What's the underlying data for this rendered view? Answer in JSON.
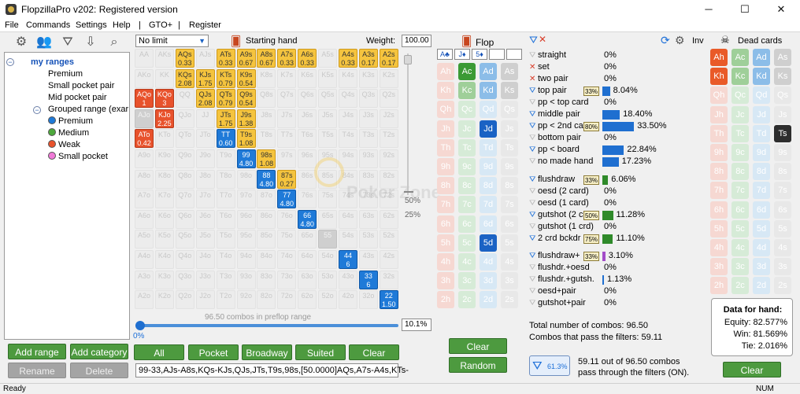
{
  "app": {
    "title": "FlopzillaPro v202: Registered version",
    "minimize": "─",
    "maximize": "☐",
    "close": "✕"
  },
  "menu": [
    "File",
    "Commands",
    "Settings",
    "Help",
    "|",
    "GTO+",
    "|",
    "Register"
  ],
  "toolbar_icons": [
    "gear-icon",
    "users-icon",
    "filter-icon",
    "import-icon",
    "search-icon"
  ],
  "tree": {
    "root": "my ranges",
    "items": [
      "Premium",
      "Small pocket pair",
      "Mid pocket pair"
    ],
    "group": "Grouped range (exar",
    "sub": [
      {
        "label": "Premium",
        "color": "#1f7ad8"
      },
      {
        "label": "Medium",
        "color": "#4da83c"
      },
      {
        "label": "Weak",
        "color": "#e8522c"
      },
      {
        "label": "Small pocket",
        "color": "#f07ad8"
      }
    ]
  },
  "left_buttons": {
    "add_range": "Add range",
    "add_category": "Add category",
    "rename": "Rename",
    "delete": "Delete"
  },
  "range_header": {
    "limit": "No limit",
    "starting_hand": "Starting hand",
    "weight_label": "Weight:",
    "weight_value": "100.00"
  },
  "range_grid": {
    "rows": [
      [
        [
          "AA",
          "",
          0
        ],
        [
          "AKs",
          "",
          0
        ],
        [
          "AQs",
          "0.33",
          1
        ],
        [
          "AJs",
          "",
          0
        ],
        [
          "ATs",
          "0.33",
          1
        ],
        [
          "A9s",
          "0.67",
          1
        ],
        [
          "A8s",
          "0.67",
          1
        ],
        [
          "A7s",
          "0.33",
          1
        ],
        [
          "A6s",
          "0.33",
          1
        ],
        [
          "A5s",
          "",
          0
        ],
        [
          "A4s",
          "0.33",
          1
        ],
        [
          "A3s",
          "0.17",
          1
        ],
        [
          "A2s",
          "0.17",
          1
        ]
      ],
      [
        [
          "AKo",
          "",
          0
        ],
        [
          "KK",
          "",
          0
        ],
        [
          "KQs",
          "2.08",
          1
        ],
        [
          "KJs",
          "1.75",
          1
        ],
        [
          "KTs",
          "0.79",
          1
        ],
        [
          "K9s",
          "0.54",
          1
        ],
        [
          "K8s",
          "",
          0
        ],
        [
          "K7s",
          "",
          0
        ],
        [
          "K6s",
          "",
          0
        ],
        [
          "K5s",
          "",
          0
        ],
        [
          "K4s",
          "",
          0
        ],
        [
          "K3s",
          "",
          0
        ],
        [
          "K2s",
          "",
          0
        ]
      ],
      [
        [
          "AQo",
          "1",
          2
        ],
        [
          "KQo",
          "3",
          2
        ],
        [
          "QQ",
          "",
          0
        ],
        [
          "QJs",
          "2.08",
          1
        ],
        [
          "QTs",
          "0.79",
          1
        ],
        [
          "Q9s",
          "0.54",
          1
        ],
        [
          "Q8s",
          "",
          0
        ],
        [
          "Q7s",
          "",
          0
        ],
        [
          "Q6s",
          "",
          0
        ],
        [
          "Q5s",
          "",
          0
        ],
        [
          "Q4s",
          "",
          0
        ],
        [
          "Q3s",
          "",
          0
        ],
        [
          "Q2s",
          "",
          0
        ]
      ],
      [
        [
          "AJo",
          "",
          4
        ],
        [
          "KJo",
          "2.25",
          2
        ],
        [
          "QJo",
          "",
          0
        ],
        [
          "JJ",
          "",
          0
        ],
        [
          "JTs",
          "1.75",
          1
        ],
        [
          "J9s",
          "1.38",
          1
        ],
        [
          "J8s",
          "",
          0
        ],
        [
          "J7s",
          "",
          0
        ],
        [
          "J6s",
          "",
          0
        ],
        [
          "J5s",
          "",
          0
        ],
        [
          "J4s",
          "",
          0
        ],
        [
          "J3s",
          "",
          0
        ],
        [
          "J2s",
          "",
          0
        ]
      ],
      [
        [
          "ATo",
          "0.42",
          2
        ],
        [
          "KTo",
          "",
          0
        ],
        [
          "QTo",
          "",
          0
        ],
        [
          "JTo",
          "",
          0
        ],
        [
          "TT",
          "0.60",
          3
        ],
        [
          "T9s",
          "1.08",
          1
        ],
        [
          "T8s",
          "",
          0
        ],
        [
          "T7s",
          "",
          0
        ],
        [
          "T6s",
          "",
          0
        ],
        [
          "T5s",
          "",
          0
        ],
        [
          "T4s",
          "",
          0
        ],
        [
          "T3s",
          "",
          0
        ],
        [
          "T2s",
          "",
          0
        ]
      ],
      [
        [
          "A9o",
          "",
          0
        ],
        [
          "K9o",
          "",
          0
        ],
        [
          "Q9o",
          "",
          0
        ],
        [
          "J9o",
          "",
          0
        ],
        [
          "T9o",
          "",
          0
        ],
        [
          "99",
          "4.80",
          3
        ],
        [
          "98s",
          "1.08",
          1
        ],
        [
          "97s",
          "",
          0
        ],
        [
          "96s",
          "",
          0
        ],
        [
          "95s",
          "",
          0
        ],
        [
          "94s",
          "",
          0
        ],
        [
          "93s",
          "",
          0
        ],
        [
          "92s",
          "",
          0
        ]
      ],
      [
        [
          "A8o",
          "",
          0
        ],
        [
          "K8o",
          "",
          0
        ],
        [
          "Q8o",
          "",
          0
        ],
        [
          "J8o",
          "",
          0
        ],
        [
          "T8o",
          "",
          0
        ],
        [
          "98o",
          "",
          0
        ],
        [
          "88",
          "4.80",
          3
        ],
        [
          "87s",
          "0.27",
          1
        ],
        [
          "86s",
          "",
          0
        ],
        [
          "85s",
          "",
          0
        ],
        [
          "84s",
          "",
          0
        ],
        [
          "83s",
          "",
          0
        ],
        [
          "82s",
          "",
          0
        ]
      ],
      [
        [
          "A7o",
          "",
          0
        ],
        [
          "K7o",
          "",
          0
        ],
        [
          "Q7o",
          "",
          0
        ],
        [
          "J7o",
          "",
          0
        ],
        [
          "T7o",
          "",
          0
        ],
        [
          "97o",
          "",
          0
        ],
        [
          "87o",
          "",
          0
        ],
        [
          "77",
          "4.80",
          3
        ],
        [
          "76s",
          "",
          0
        ],
        [
          "75s",
          "",
          0
        ],
        [
          "74s",
          "",
          0
        ],
        [
          "73s",
          "",
          0
        ],
        [
          "72s",
          "",
          0
        ]
      ],
      [
        [
          "A6o",
          "",
          0
        ],
        [
          "K6o",
          "",
          0
        ],
        [
          "Q6o",
          "",
          0
        ],
        [
          "J6o",
          "",
          0
        ],
        [
          "T6o",
          "",
          0
        ],
        [
          "96o",
          "",
          0
        ],
        [
          "86o",
          "",
          0
        ],
        [
          "76o",
          "",
          0
        ],
        [
          "66",
          "4.80",
          3
        ],
        [
          "65s",
          "",
          0
        ],
        [
          "64s",
          "",
          0
        ],
        [
          "63s",
          "",
          0
        ],
        [
          "62s",
          "",
          0
        ]
      ],
      [
        [
          "A5o",
          "",
          0
        ],
        [
          "K5o",
          "",
          0
        ],
        [
          "Q5o",
          "",
          0
        ],
        [
          "J5o",
          "",
          0
        ],
        [
          "T5o",
          "",
          0
        ],
        [
          "95o",
          "",
          0
        ],
        [
          "85o",
          "",
          0
        ],
        [
          "75o",
          "",
          0
        ],
        [
          "65o",
          "",
          0
        ],
        [
          "55",
          "",
          4
        ],
        [
          "54s",
          "",
          0
        ],
        [
          "53s",
          "",
          0
        ],
        [
          "52s",
          "",
          0
        ]
      ],
      [
        [
          "A4o",
          "",
          0
        ],
        [
          "K4o",
          "",
          0
        ],
        [
          "Q4o",
          "",
          0
        ],
        [
          "J4o",
          "",
          0
        ],
        [
          "T4o",
          "",
          0
        ],
        [
          "94o",
          "",
          0
        ],
        [
          "84o",
          "",
          0
        ],
        [
          "74o",
          "",
          0
        ],
        [
          "64o",
          "",
          0
        ],
        [
          "54o",
          "",
          0
        ],
        [
          "44",
          "6",
          3
        ],
        [
          "43s",
          "",
          0
        ],
        [
          "42s",
          "",
          0
        ]
      ],
      [
        [
          "A3o",
          "",
          0
        ],
        [
          "K3o",
          "",
          0
        ],
        [
          "Q3o",
          "",
          0
        ],
        [
          "J3o",
          "",
          0
        ],
        [
          "T3o",
          "",
          0
        ],
        [
          "93o",
          "",
          0
        ],
        [
          "83o",
          "",
          0
        ],
        [
          "73o",
          "",
          0
        ],
        [
          "63o",
          "",
          0
        ],
        [
          "53o",
          "",
          0
        ],
        [
          "43o",
          "",
          0
        ],
        [
          "33",
          "6",
          3
        ],
        [
          "32s",
          "",
          0
        ]
      ],
      [
        [
          "A2o",
          "",
          0
        ],
        [
          "K2o",
          "",
          0
        ],
        [
          "Q2o",
          "",
          0
        ],
        [
          "J2o",
          "",
          0
        ],
        [
          "T2o",
          "",
          0
        ],
        [
          "92o",
          "",
          0
        ],
        [
          "82o",
          "",
          0
        ],
        [
          "72o",
          "",
          0
        ],
        [
          "62o",
          "",
          0
        ],
        [
          "52o",
          "",
          0
        ],
        [
          "42o",
          "",
          0
        ],
        [
          "32o",
          "",
          0
        ],
        [
          "22",
          "1.50",
          3
        ]
      ]
    ]
  },
  "slider": {
    "label_50": "50%",
    "label_25": "25%",
    "progress": 0.0,
    "progress_label": "0%",
    "combos_label": "96.50 combos in preflop range",
    "percent_value": "10.1%"
  },
  "range_buttons": {
    "all": "All",
    "pocket": "Pocket",
    "broadway": "Broadway",
    "suited": "Suited",
    "clear": "Clear"
  },
  "range_text": "99-33,AJs-A8s,KQs-KJs,QJs,JTs,T9s,98s,[50.0000]AQs,A7s-A4s,KTs-",
  "flop": {
    "title": "Flop",
    "board": [
      "A♣",
      "J♦",
      "5♦",
      "",
      ""
    ],
    "clear": "Clear",
    "random": "Random",
    "cols": [
      [
        "Ah",
        "Kh",
        "Qh",
        "Jh",
        "Th",
        "9h",
        "8h",
        "7h",
        "6h",
        "5h",
        "4h",
        "3h",
        "2h"
      ],
      [
        "Ac",
        "Kc",
        "Qc",
        "Jc",
        "Tc",
        "9c",
        "8c",
        "7c",
        "6c",
        "5c",
        "4c",
        "3c",
        "2c"
      ],
      [
        "Ad",
        "Kd",
        "Qd",
        "Jd",
        "Td",
        "9d",
        "8d",
        "7d",
        "6d",
        "5d",
        "4d",
        "3d",
        "2d"
      ],
      [
        "As",
        "Ks",
        "Qs",
        "Js",
        "Ts",
        "9s",
        "8s",
        "7s",
        "6s",
        "5s",
        "4s",
        "3s",
        "2s"
      ]
    ]
  },
  "filters": [
    {
      "label": "straight",
      "pct": "0%",
      "icon": "g",
      "bar": 0
    },
    {
      "label": "set",
      "pct": "0%",
      "icon": "x",
      "bar": 0
    },
    {
      "label": "two pair",
      "pct": "0%",
      "icon": "x",
      "bar": 0
    },
    {
      "label": "top pair",
      "pct": "8.04%",
      "icon": "b",
      "bar": 8.04,
      "badge": "33%"
    },
    {
      "label": "pp < top card",
      "pct": "0%",
      "icon": "g",
      "bar": 0
    },
    {
      "label": "middle pair",
      "pct": "18.40%",
      "icon": "b",
      "bar": 18.4
    },
    {
      "label": "pp < 2nd car",
      "pct": "33.50%",
      "icon": "b",
      "bar": 33.5,
      "badge": "80%"
    },
    {
      "label": "bottom pair",
      "pct": "0%",
      "icon": "g",
      "bar": 0
    },
    {
      "label": "pp < board",
      "pct": "22.84%",
      "icon": "b",
      "bar": 22.84
    },
    {
      "label": "no made hand",
      "pct": "17.23%",
      "icon": "g",
      "bar": 17.23
    },
    {
      "label": "flushdraw",
      "pct": "6.06%",
      "icon": "b",
      "bar": 6.06,
      "badge": "33%"
    },
    {
      "label": "oesd (2 card)",
      "pct": "0%",
      "icon": "g",
      "bar": 0
    },
    {
      "label": "oesd (1 card)",
      "pct": "0%",
      "icon": "g",
      "bar": 0
    },
    {
      "label": "gutshot (2 c",
      "pct": "11.28%",
      "icon": "b",
      "bar": 11.28,
      "badge": "50%"
    },
    {
      "label": "gutshot (1 crd)",
      "pct": "0%",
      "icon": "g",
      "bar": 0
    },
    {
      "label": "2 crd bckdr",
      "pct": "11.10%",
      "icon": "b",
      "bar": 11.1,
      "badge": "75%"
    },
    {
      "label": "flushdraw+",
      "pct": "3.10%",
      "icon": "b",
      "bar": 3.1,
      "badge": "33%"
    },
    {
      "label": "flushdr.+oesd",
      "pct": "0%",
      "icon": "g",
      "bar": 0
    },
    {
      "label": "flushdr.+gutsh.",
      "pct": "1.13%",
      "icon": "g",
      "bar": 1.13
    },
    {
      "label": "oesd+pair",
      "pct": "0%",
      "icon": "g",
      "bar": 0
    },
    {
      "label": "gutshot+pair",
      "pct": "0%",
      "icon": "g",
      "bar": 0
    }
  ],
  "totals": {
    "total": "Total number of combos: 96.50",
    "pass": "Combos that pass the filters: 59.11",
    "summary1": "59.11 out of 96.50 combos",
    "summary2": "pass through the filters (ON).",
    "filter_pct": "61.3%"
  },
  "inv": {
    "label": "Inv"
  },
  "dead": {
    "title": "Dead cards",
    "clear": "Clear",
    "cols": [
      [
        "Ah",
        "Kh",
        "Qh",
        "Jh",
        "Th",
        "9h",
        "8h",
        "7h",
        "6h",
        "5h",
        "4h",
        "3h",
        "2h"
      ],
      [
        "Ac",
        "Kc",
        "Qc",
        "Jc",
        "Tc",
        "9c",
        "8c",
        "7c",
        "6c",
        "5c",
        "4c",
        "3c",
        "2c"
      ],
      [
        "Ad",
        "Kd",
        "Qd",
        "Jd",
        "Td",
        "9d",
        "8d",
        "7d",
        "6d",
        "5d",
        "4d",
        "3d",
        "2d"
      ],
      [
        "As",
        "Ks",
        "Qs",
        "Js",
        "Ts",
        "9s",
        "8s",
        "7s",
        "6s",
        "5s",
        "4s",
        "3s",
        "2s"
      ]
    ]
  },
  "hand_data": {
    "title": "Data for hand:",
    "equity": "Equity: 82.577%",
    "win": "Win: 81.569%",
    "tie": "Tie: 2.016%"
  },
  "status": {
    "left": "Ready",
    "right": "NUM"
  },
  "watermark": "Poker Zone"
}
